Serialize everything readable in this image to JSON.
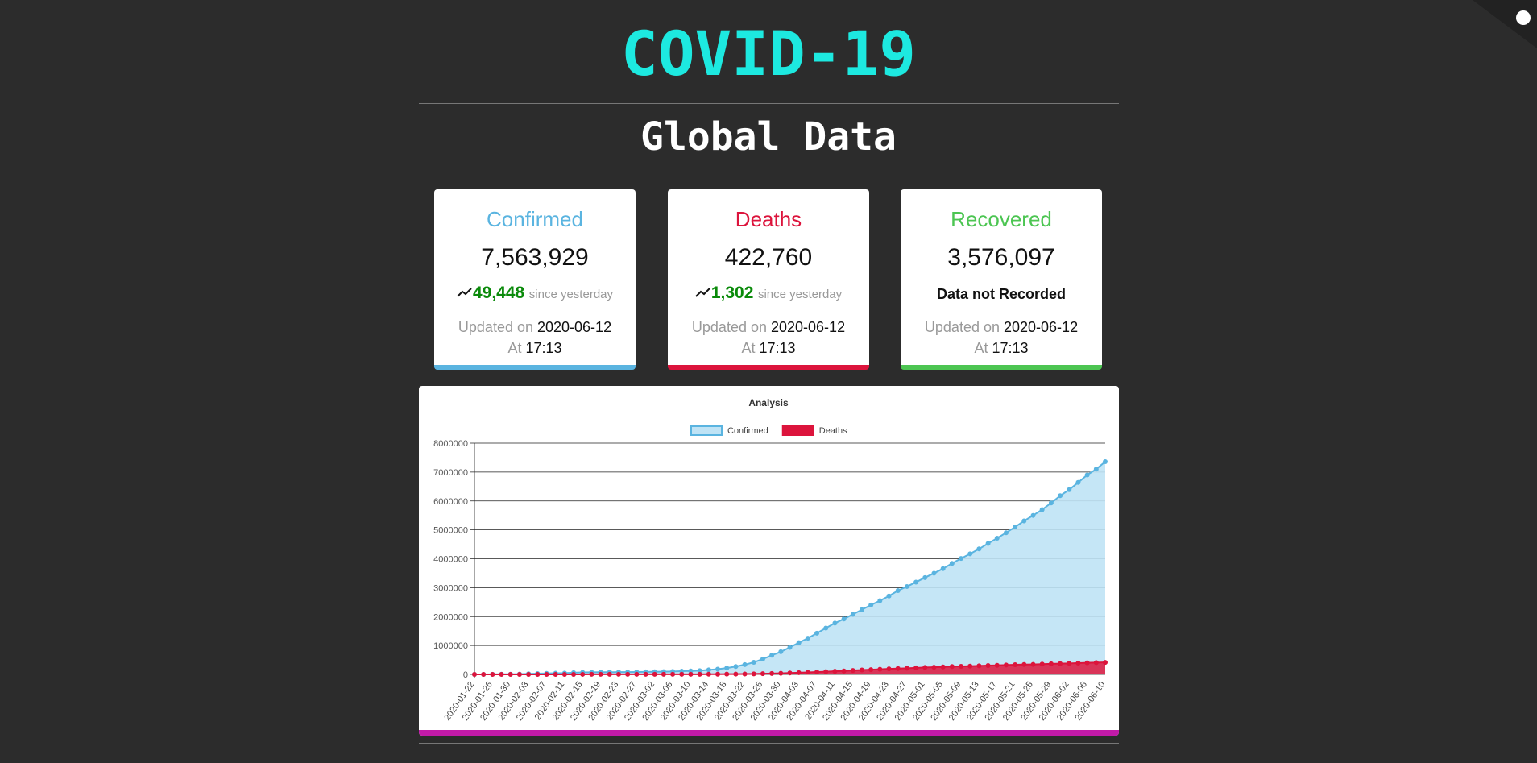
{
  "header": {
    "title": "COVID-19",
    "subtitle": "Global Data"
  },
  "cards": [
    {
      "title": "Confirmed",
      "color": "#5ab4e0",
      "value": "7,563,929",
      "change": "49,448",
      "change_label": "since yesterday",
      "updated_label": "Updated on",
      "date": "2020-06-12",
      "at_label": "At",
      "time": "17:13"
    },
    {
      "title": "Deaths",
      "color": "#dc143c",
      "value": "422,760",
      "change": "1,302",
      "change_label": "since yesterday",
      "updated_label": "Updated on",
      "date": "2020-06-12",
      "at_label": "At",
      "time": "17:13"
    },
    {
      "title": "Recovered",
      "color": "#4cc552",
      "value": "3,576,097",
      "note": "Data not Recorded",
      "updated_label": "Updated on",
      "date": "2020-06-12",
      "at_label": "At",
      "time": "17:13"
    }
  ],
  "chart_data": {
    "type": "line",
    "title": "Analysis",
    "categories": [
      "2020-01-22",
      null,
      "2020-01-26",
      null,
      "2020-01-30",
      null,
      "2020-02-03",
      null,
      "2020-02-07",
      null,
      "2020-02-11",
      null,
      "2020-02-15",
      null,
      "2020-02-19",
      null,
      "2020-02-23",
      null,
      "2020-02-27",
      null,
      "2020-03-02",
      null,
      "2020-03-06",
      null,
      "2020-03-10",
      null,
      "2020-03-14",
      null,
      "2020-03-18",
      null,
      "2020-03-22",
      null,
      "2020-03-26",
      null,
      "2020-03-30",
      null,
      "2020-04-03",
      null,
      "2020-04-07",
      null,
      "2020-04-11",
      null,
      "2020-04-15",
      null,
      "2020-04-19",
      null,
      "2020-04-23",
      null,
      "2020-04-27",
      null,
      "2020-05-01",
      null,
      "2020-05-05",
      null,
      "2020-05-09",
      null,
      "2020-05-13",
      null,
      "2020-05-17",
      null,
      "2020-05-21",
      null,
      "2020-05-25",
      null,
      "2020-05-29",
      null,
      "2020-06-02",
      null,
      "2020-06-06",
      null,
      "2020-06-10"
    ],
    "series": [
      {
        "name": "Confirmed",
        "color": "#5ab4e0",
        "fill": "#bfe3f5",
        "values": [
          555,
          941,
          2118,
          5578,
          8234,
          12038,
          19881,
          28276,
          34395,
          40553,
          45170,
          60370,
          68586,
          72528,
          75641,
          76842,
          78985,
          80415,
          82756,
          86011,
          90306,
          95120,
          101784,
          109821,
          118592,
          128343,
          156099,
          181546,
          218744,
          272167,
          336953,
          417966,
          529591,
          660706,
          782365,
          932605,
          1095917,
          1249754,
          1426096,
          1603000,
          1772000,
          1917000,
          2078000,
          2240000,
          2400000,
          2550000,
          2710000,
          2900000,
          3040000,
          3190000,
          3350000,
          3500000,
          3660000,
          3840000,
          4010000,
          4170000,
          4340000,
          4530000,
          4710000,
          4900000,
          5100000,
          5310000,
          5500000,
          5700000,
          5930000,
          6180000,
          6390000,
          6640000,
          6900000,
          7100000,
          7360000
        ]
      },
      {
        "name": "Deaths",
        "color": "#dc143c",
        "fill": "#dc143c",
        "values": [
          17,
          26,
          56,
          131,
          171,
          259,
          425,
          564,
          719,
          906,
          1113,
          1371,
          1666,
          1870,
          2122,
          2251,
          2469,
          2708,
          2814,
          2941,
          3085,
          3281,
          3460,
          3808,
          4262,
          4720,
          5819,
          7126,
          8951,
          11299,
          14652,
          18625,
          23970,
          30849,
          37582,
          47180,
          58787,
          69374,
          82074,
          95735,
          108503,
          119483,
          134615,
          153822,
          165044,
          177641,
          190858,
          202846,
          211167,
          227638,
          239604,
          248149,
          257239,
          270740,
          280220,
          286330,
          297220,
          307666,
          315185,
          324430,
          334621,
          342097,
          346232,
          355629,
          364868,
          372035,
          381497,
          391136,
          399878,
          407162,
          416201
        ]
      }
    ],
    "ylim": [
      0,
      8000000
    ],
    "yticks": [
      0,
      1000000,
      2000000,
      3000000,
      4000000,
      5000000,
      6000000,
      7000000,
      8000000
    ],
    "grid": true
  }
}
